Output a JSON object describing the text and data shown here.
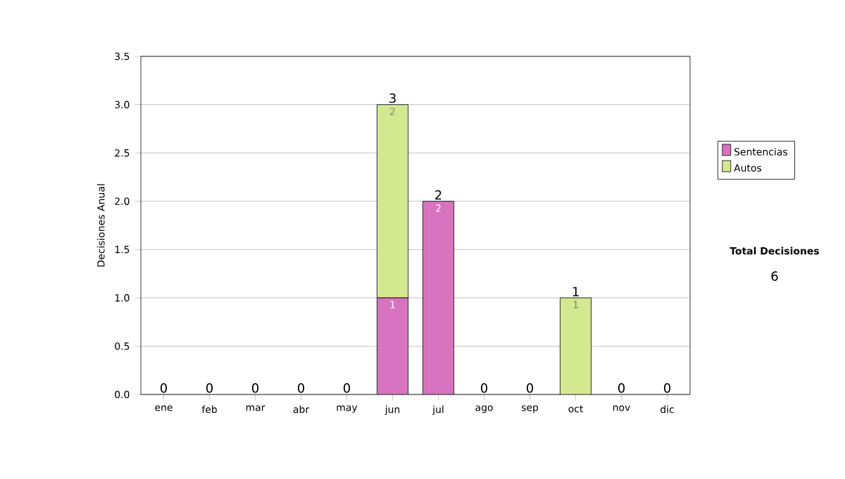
{
  "chart_data": {
    "type": "bar",
    "stacked": true,
    "ylabel": "Decisiones Anual",
    "categories": [
      "ene",
      "feb",
      "mar",
      "abr",
      "may",
      "jun",
      "jul",
      "ago",
      "sep",
      "oct",
      "nov",
      "dic"
    ],
    "series": [
      {
        "name": "Sentencias",
        "color": "#d873c0",
        "values": [
          0,
          0,
          0,
          0,
          0,
          1,
          2,
          0,
          0,
          0,
          0,
          0
        ],
        "value_labels": [
          null,
          null,
          null,
          null,
          null,
          "1",
          "2",
          null,
          null,
          null,
          null,
          null
        ]
      },
      {
        "name": "Autos",
        "color": "#d4e88f",
        "values": [
          0,
          0,
          0,
          0,
          0,
          2,
          0,
          0,
          0,
          1,
          0,
          0
        ],
        "value_labels": [
          null,
          null,
          null,
          null,
          null,
          "2",
          null,
          null,
          null,
          "1",
          null,
          null
        ]
      }
    ],
    "totals": [
      "0",
      "0",
      "0",
      "0",
      "0",
      "3",
      "2",
      "0",
      "0",
      "1",
      "0",
      "0"
    ],
    "ylim": [
      0,
      3.5
    ],
    "yticks": [
      {
        "value": 0,
        "label": "0.0"
      },
      {
        "value": 0.5,
        "label": "0.5"
      },
      {
        "value": 1,
        "label": "1.0"
      },
      {
        "value": 1.5,
        "label": "1.5"
      },
      {
        "value": 2,
        "label": "2.0"
      },
      {
        "value": 2.5,
        "label": "2.5"
      },
      {
        "value": 3,
        "label": "3.0"
      },
      {
        "value": 3.5,
        "label": "3.5"
      }
    ],
    "grid": "y",
    "legend": "right",
    "annotations": [
      "Total Decisiones",
      "6"
    ]
  }
}
